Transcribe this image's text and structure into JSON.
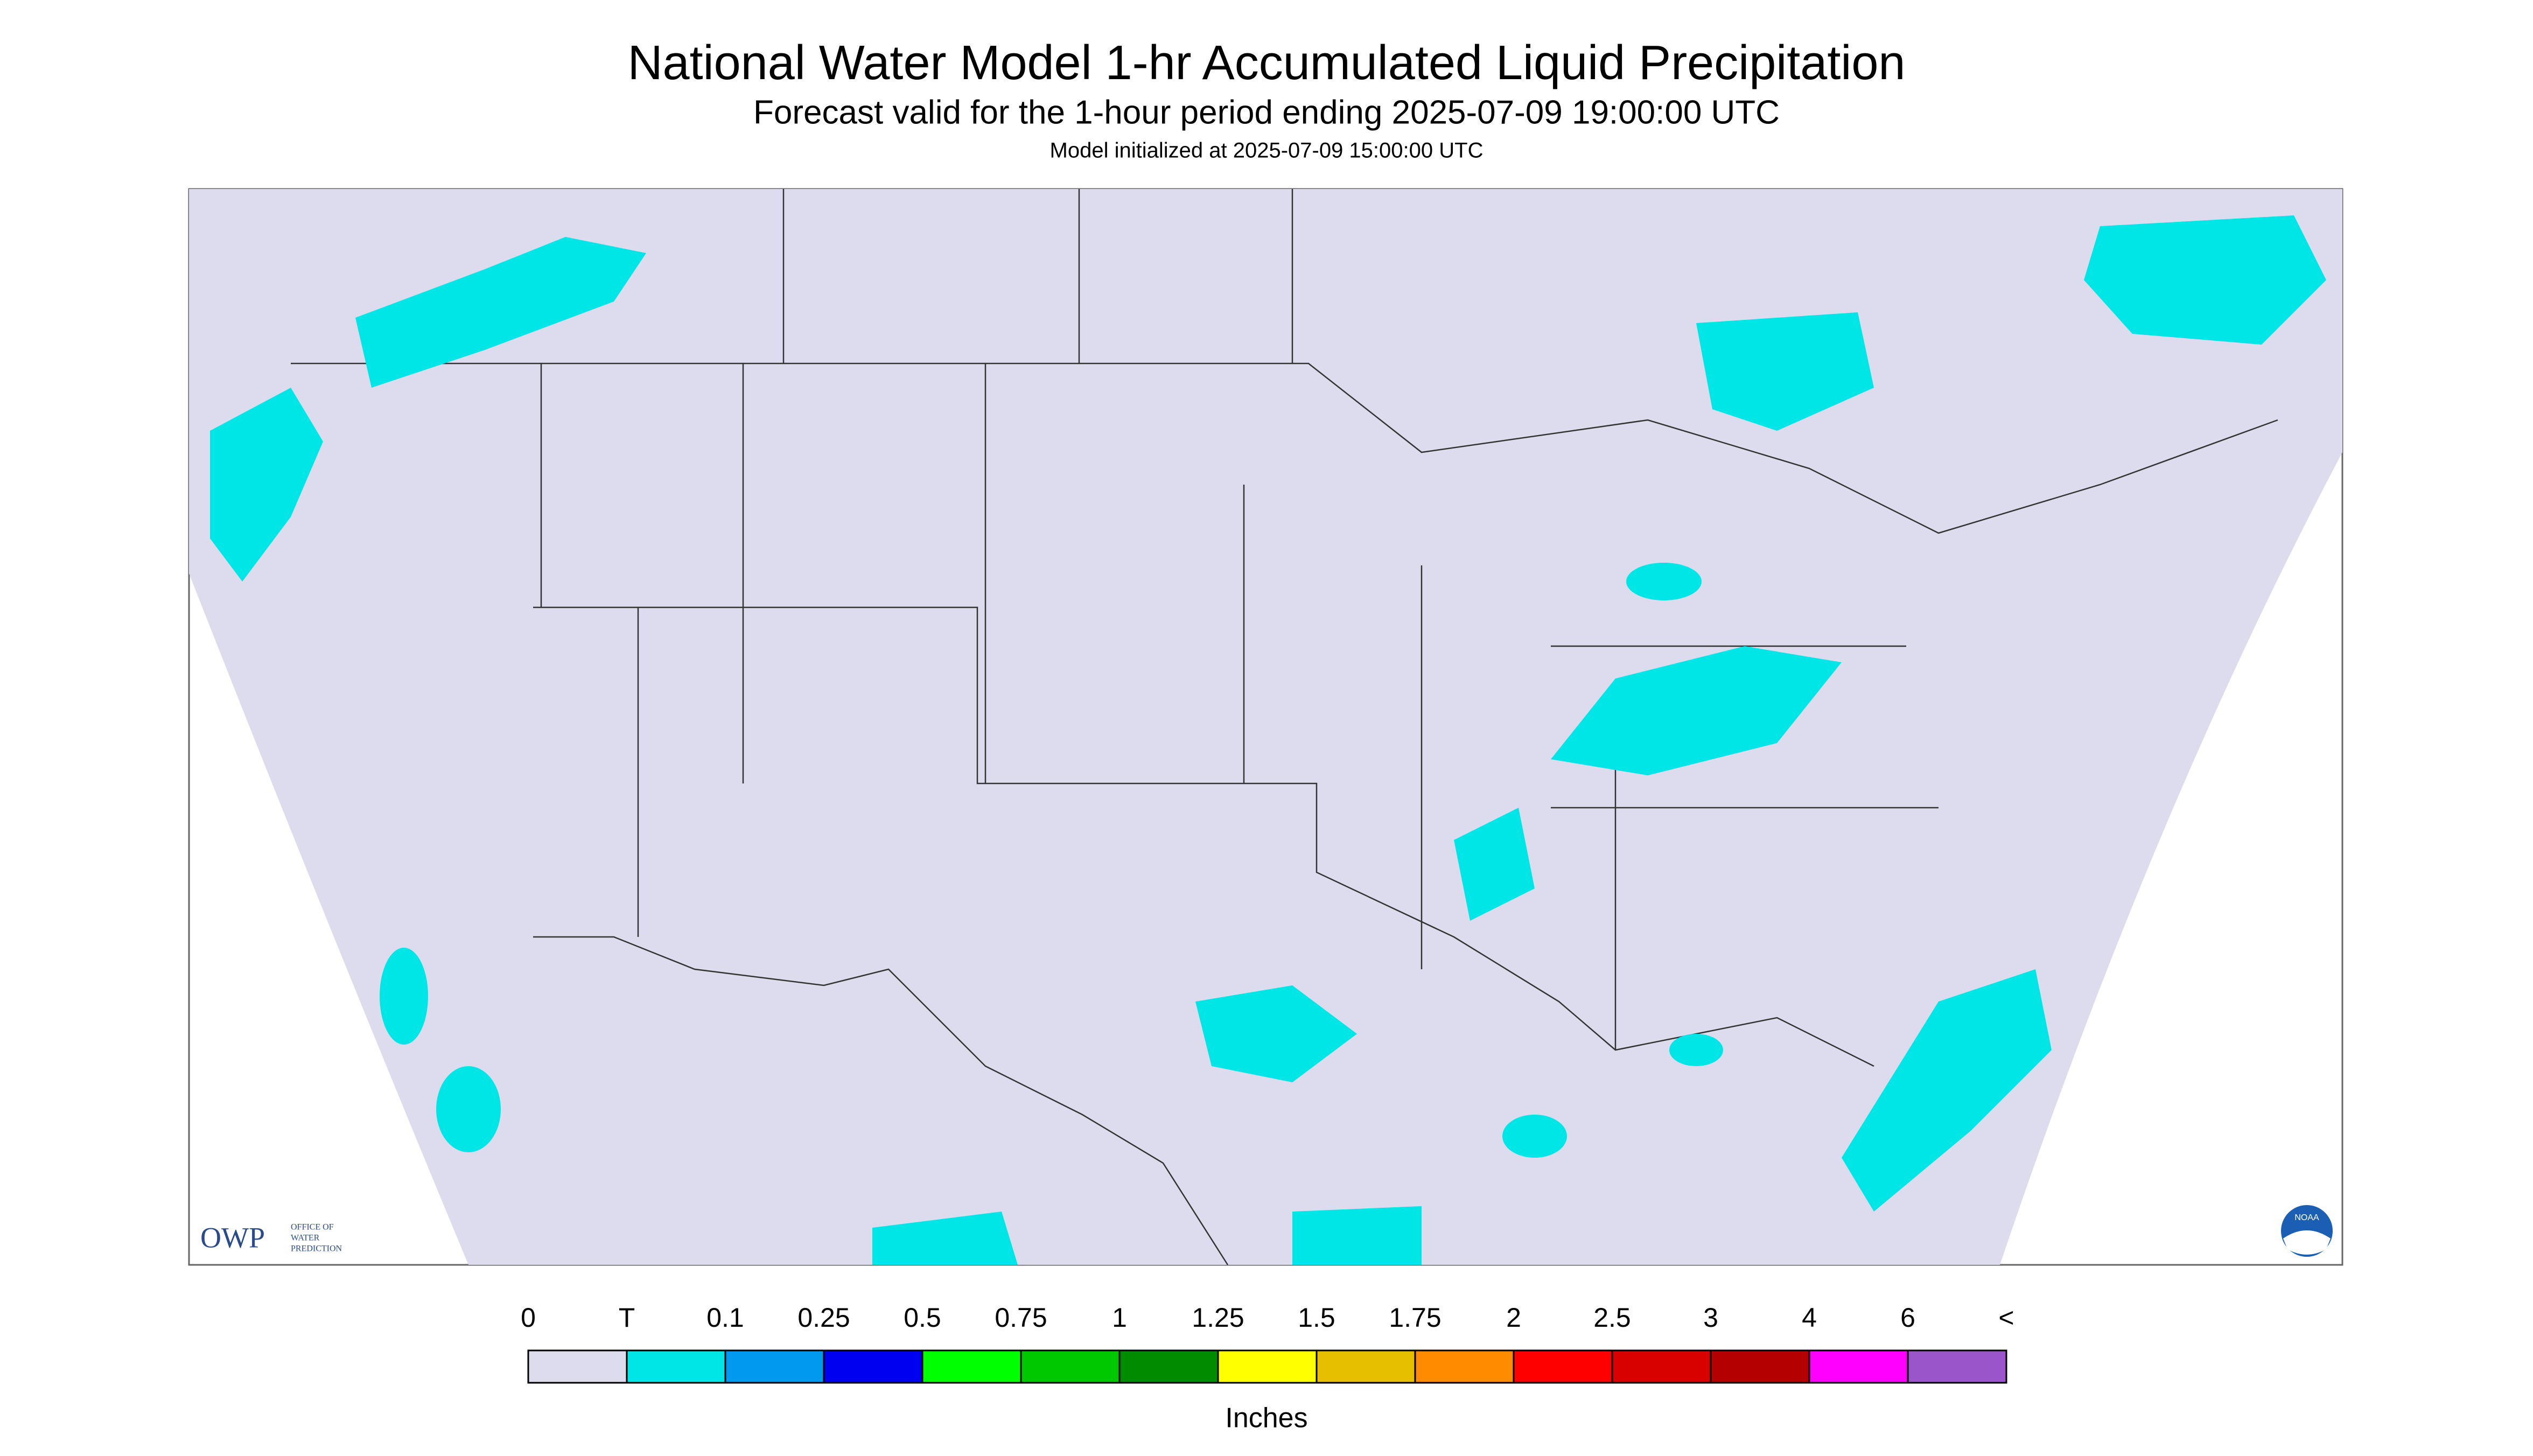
{
  "header": {
    "title": "National Water Model 1-hr Accumulated Liquid Precipitation",
    "subtitle": "Forecast valid for the 1-hour period ending 2025-07-09 19:00:00 UTC",
    "init": "Model initialized at 2025-07-09 15:00:00 UTC"
  },
  "legend": {
    "labels": [
      "0",
      "T",
      "0.1",
      "0.25",
      "0.5",
      "0.75",
      "1",
      "1.25",
      "1.5",
      "1.75",
      "2",
      "2.5",
      "3",
      "4",
      "6",
      "<"
    ],
    "colors": [
      "#dcdcee",
      "#00e5e5",
      "#0099f0",
      "#0000f0",
      "#00ff00",
      "#00c800",
      "#008c00",
      "#ffff00",
      "#e6c000",
      "#ff8c00",
      "#ff0000",
      "#d90000",
      "#b40000",
      "#ff00ff",
      "#9955c9"
    ],
    "unit": "Inches"
  },
  "logos": {
    "owp": "OWP",
    "owp_text": [
      "OFFICE OF",
      "WATER",
      "PREDICTION"
    ],
    "noaa": "NOAA"
  }
}
